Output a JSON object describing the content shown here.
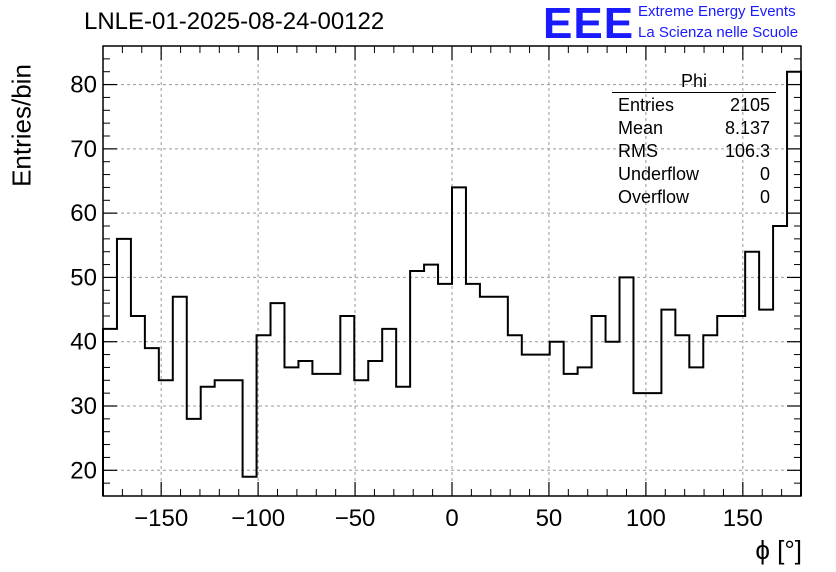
{
  "header": {
    "title": "LNLE-01-2025-08-24-00122",
    "logo_text": "EEE",
    "logo_line1": "Extreme Energy Events",
    "logo_line2": "La Scienza nelle Scuole"
  },
  "stats": {
    "name": "Phi",
    "rows": [
      {
        "label": "Entries",
        "value": "2105"
      },
      {
        "label": "Mean",
        "value": "8.137"
      },
      {
        "label": "RMS",
        "value": "106.3"
      },
      {
        "label": "Underflow",
        "value": "0"
      },
      {
        "label": "Overflow",
        "value": "0"
      }
    ]
  },
  "chart_data": {
    "type": "bar",
    "histogram": true,
    "title": "LNLE-01-2025-08-24-00122",
    "xlabel": "ϕ [°]",
    "ylabel": "Entries/bin",
    "xlim": [
      -180,
      180
    ],
    "ylim": [
      16,
      86
    ],
    "bin_edges_start": -180,
    "bin_width": 7.2,
    "values": [
      42,
      56,
      44,
      39,
      34,
      47,
      28,
      33,
      34,
      34,
      19,
      41,
      46,
      36,
      37,
      35,
      35,
      44,
      34,
      37,
      42,
      33,
      51,
      52,
      49,
      64,
      49,
      47,
      47,
      41,
      38,
      38,
      40,
      35,
      36,
      44,
      40,
      50,
      32,
      32,
      45,
      41,
      36,
      41,
      44,
      44,
      54,
      45,
      58,
      82
    ],
    "xticks": [
      -150,
      -100,
      -50,
      0,
      50,
      100,
      150
    ],
    "yticks": [
      20,
      30,
      40,
      50,
      60,
      70,
      80
    ],
    "grid": true,
    "line_color": "#000000",
    "grid_color": "#999999"
  }
}
